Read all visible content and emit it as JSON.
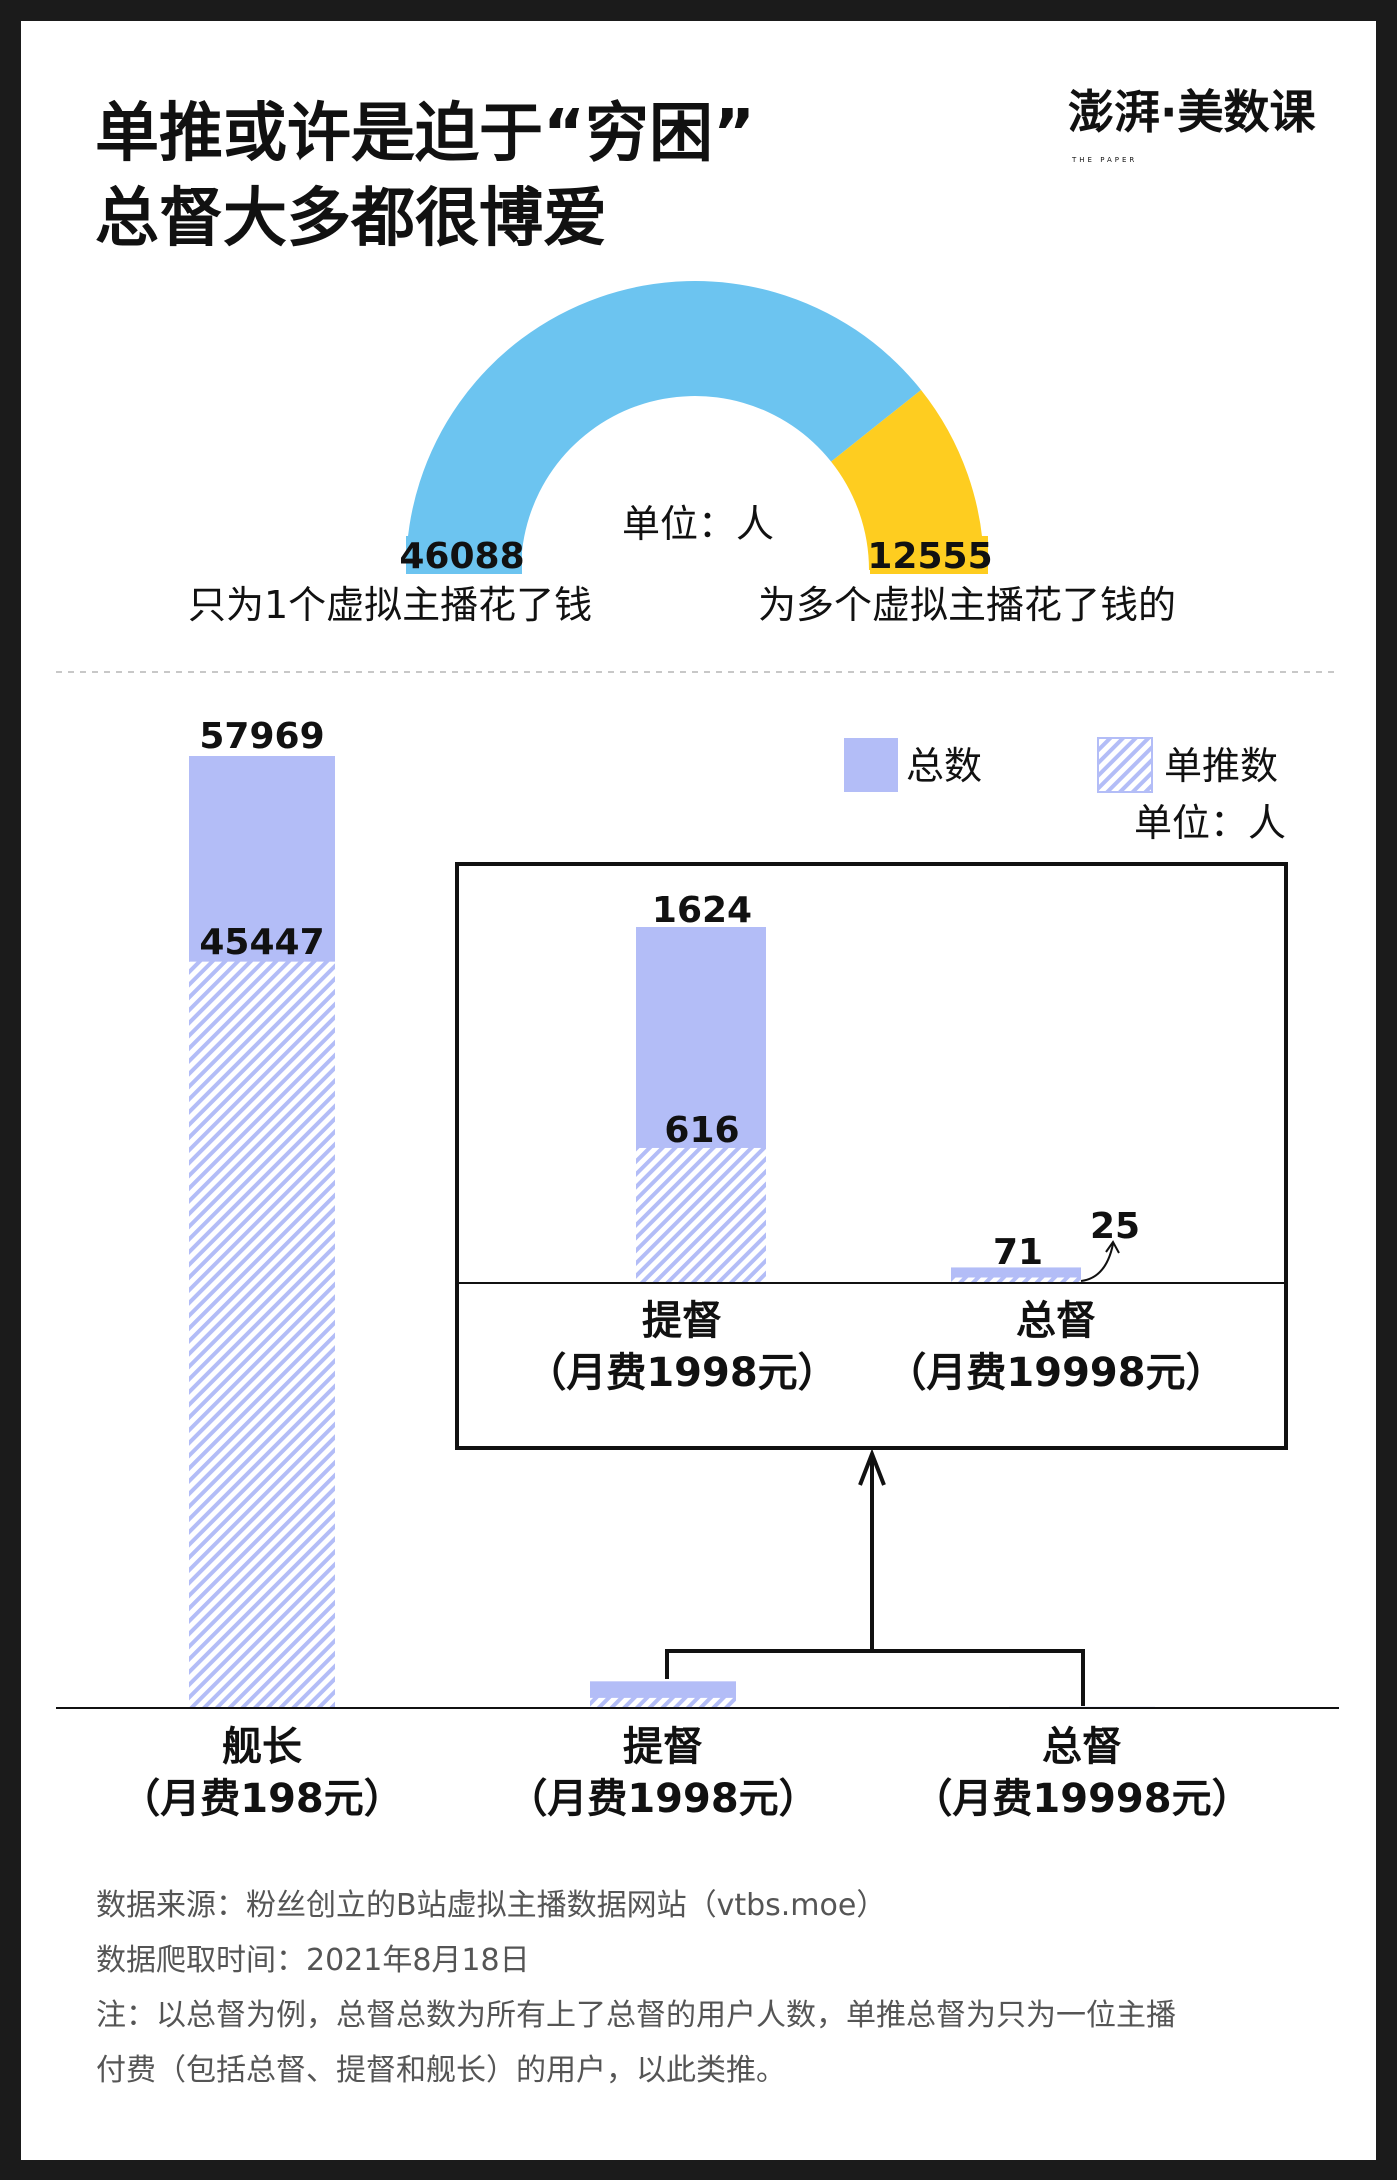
{
  "title": {
    "line1": "单推或许是迫于“穷困”",
    "line2": "总督大多都很博爱"
  },
  "logo": {
    "text": "澎湃·美数课",
    "sub": "THE PAPER"
  },
  "colors": {
    "single": "#6cc4f0",
    "multi": "#fecd20",
    "bar": "#b3bdf7",
    "axis": "#111111"
  },
  "chart_data": [
    {
      "type": "pie",
      "shape": "semicircle-donut",
      "unit": "单位：人",
      "segments": [
        {
          "label": "只为1个虚拟主播花了钱",
          "value": 46088,
          "color": "#6cc4f0"
        },
        {
          "label": "为多个虚拟主播花了钱的",
          "value": 12555,
          "color": "#fecd20"
        }
      ]
    },
    {
      "type": "bar",
      "stacking": "overlaid",
      "unit": "单位：人",
      "legend": [
        "总数",
        "单推数"
      ],
      "legend_placement": "top-right",
      "categories": [
        {
          "name": "舰长",
          "fee": "（月费198元）"
        },
        {
          "name": "提督",
          "fee": "（月费1998元）"
        },
        {
          "name": "总督",
          "fee": "（月费19998元）"
        }
      ],
      "series": [
        {
          "name": "总数",
          "values": [
            57969,
            1624,
            71
          ],
          "fill": "solid"
        },
        {
          "name": "单推数",
          "values": [
            45447,
            616,
            25
          ],
          "fill": "hatched"
        }
      ]
    },
    {
      "type": "bar",
      "role": "zoomed-inset",
      "categories": [
        {
          "name": "提督",
          "fee": "（月费1998元）"
        },
        {
          "name": "总督",
          "fee": "（月费19998元）"
        }
      ],
      "series": [
        {
          "name": "总数",
          "values": [
            1624,
            71
          ]
        },
        {
          "name": "单推数",
          "values": [
            616,
            25
          ]
        }
      ]
    }
  ],
  "footer": {
    "source": "数据来源：粉丝创立的B站虚拟主播数据网站（vtbs.moe）",
    "time": "数据爬取时间：2021年8月18日",
    "note1": "注：以总督为例，总督总数为所有上了总督的用户人数，单推总督为只为一位主播",
    "note2": "付费（包括总督、提督和舰长）的用户，以此类推。"
  }
}
